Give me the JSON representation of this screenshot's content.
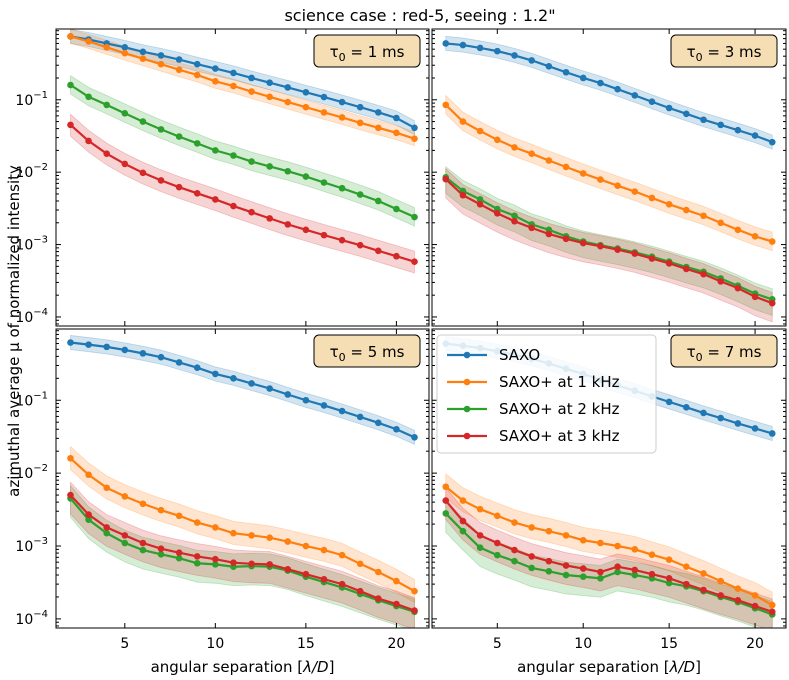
{
  "chart_data": {
    "type": "line",
    "title": "science case : red-5, seeing : 1.2\"",
    "xlabel_prefix": "angular separation [",
    "xlabel_math": "λ/D",
    "xlabel_suffix": "]",
    "ylabel": "azimuthal average μ of normalized intensity",
    "xlim": [
      1.2,
      21.8
    ],
    "ylim": [
      7.5e-05,
      0.95
    ],
    "yscale": "log",
    "xticks": [
      5,
      10,
      15,
      20
    ],
    "xtick_labels": [
      "5",
      "10",
      "15",
      "20"
    ],
    "yticks": [
      0.1,
      0.01,
      0.001,
      0.0001
    ],
    "ytick_labels": [
      {
        "base": "10",
        "exp": "−1"
      },
      {
        "base": "10",
        "exp": "−2"
      },
      {
        "base": "10",
        "exp": "−3"
      },
      {
        "base": "10",
        "exp": "−4"
      }
    ],
    "x": [
      2,
      3,
      4,
      5,
      6,
      7,
      8,
      9,
      10,
      11,
      12,
      13,
      14,
      15,
      16,
      17,
      18,
      19,
      20,
      21
    ],
    "colors": {
      "SAXO": "#1f77b4",
      "SAXO+ at 1 kHz": "#ff7f0e",
      "SAXO+ at 2 kHz": "#2ca02c",
      "SAXO+ at 3 kHz": "#d62728"
    },
    "legend": {
      "placement": "top-left of lower-right panel",
      "entries": [
        "SAXO",
        "SAXO+ at 1 kHz",
        "SAXO+ at 2 kHz",
        "SAXO+ at 3 kHz"
      ]
    },
    "panels": [
      {
        "tau_symbol": "τ",
        "tau_sub": "0",
        "tau_value": "= 1 ms",
        "series": [
          {
            "name": "SAXO",
            "values": [
              0.75,
              0.68,
              0.6,
              0.53,
              0.46,
              0.41,
              0.36,
              0.31,
              0.27,
              0.235,
              0.2,
              0.172,
              0.148,
              0.127,
              0.109,
              0.093,
              0.079,
              0.067,
              0.056,
              0.041
            ],
            "band_low": 0.8,
            "band_high": 1.25
          },
          {
            "name": "SAXO+ at 1 kHz",
            "values": [
              0.75,
              0.64,
              0.53,
              0.44,
              0.37,
              0.31,
              0.26,
              0.22,
              0.18,
              0.155,
              0.13,
              0.11,
              0.093,
              0.079,
              0.067,
              0.057,
              0.048,
              0.041,
              0.035,
              0.029
            ],
            "band_low": 0.8,
            "band_high": 1.25
          },
          {
            "name": "SAXO+ at 2 kHz",
            "values": [
              0.16,
              0.11,
              0.085,
              0.065,
              0.05,
              0.039,
              0.031,
              0.025,
              0.02,
              0.017,
              0.014,
              0.012,
              0.0103,
              0.0087,
              0.0072,
              0.006,
              0.0049,
              0.004,
              0.0031,
              0.0024
            ],
            "band_low": 0.75,
            "band_high": 1.35
          },
          {
            "name": "SAXO+ at 3 kHz",
            "values": [
              0.045,
              0.027,
              0.018,
              0.013,
              0.0098,
              0.0077,
              0.0062,
              0.0051,
              0.0042,
              0.0034,
              0.0028,
              0.0023,
              0.0019,
              0.0016,
              0.00135,
              0.00115,
              0.00098,
              0.00082,
              0.00069,
              0.00058
            ],
            "band_low": 0.7,
            "band_high": 1.4
          }
        ]
      },
      {
        "tau_symbol": "τ",
        "tau_sub": "0",
        "tau_value": "= 3 ms",
        "series": [
          {
            "name": "SAXO",
            "values": [
              0.6,
              0.57,
              0.52,
              0.47,
              0.41,
              0.35,
              0.29,
              0.24,
              0.2,
              0.17,
              0.14,
              0.115,
              0.094,
              0.077,
              0.064,
              0.053,
              0.045,
              0.038,
              0.032,
              0.026
            ],
            "band_low": 0.8,
            "band_high": 1.25
          },
          {
            "name": "SAXO+ at 1 kHz",
            "values": [
              0.085,
              0.05,
              0.037,
              0.028,
              0.022,
              0.018,
              0.0145,
              0.0118,
              0.0096,
              0.0079,
              0.0065,
              0.0054,
              0.0044,
              0.0036,
              0.003,
              0.0025,
              0.002,
              0.0016,
              0.0013,
              0.0011
            ],
            "band_low": 0.75,
            "band_high": 1.35
          },
          {
            "name": "SAXO+ at 2 kHz",
            "values": [
              0.0085,
              0.0055,
              0.0042,
              0.0031,
              0.0025,
              0.0019,
              0.0016,
              0.0013,
              0.0011,
              0.00098,
              0.00088,
              0.00078,
              0.00068,
              0.00058,
              0.00049,
              0.00042,
              0.00034,
              0.00027,
              0.00021,
              0.000175
            ],
            "band_low": 0.6,
            "band_high": 1.4
          },
          {
            "name": "SAXO+ at 3 kHz",
            "values": [
              0.008,
              0.0048,
              0.0036,
              0.0027,
              0.0021,
              0.0017,
              0.0014,
              0.0012,
              0.00105,
              0.00095,
              0.00085,
              0.00075,
              0.00064,
              0.00055,
              0.00046,
              0.00039,
              0.00031,
              0.00025,
              0.00019,
              0.000155
            ],
            "band_low": 0.55,
            "band_high": 1.4
          }
        ]
      },
      {
        "tau_symbol": "τ",
        "tau_sub": "0",
        "tau_value": "= 5 ms",
        "series": [
          {
            "name": "SAXO",
            "values": [
              0.62,
              0.58,
              0.54,
              0.49,
              0.44,
              0.39,
              0.33,
              0.28,
              0.23,
              0.2,
              0.17,
              0.145,
              0.12,
              0.1,
              0.085,
              0.071,
              0.059,
              0.049,
              0.04,
              0.031
            ],
            "band_low": 0.8,
            "band_high": 1.25
          },
          {
            "name": "SAXO+ at 1 kHz",
            "values": [
              0.016,
              0.0095,
              0.0063,
              0.0048,
              0.0038,
              0.0031,
              0.0026,
              0.0021,
              0.0018,
              0.0015,
              0.0014,
              0.0013,
              0.00115,
              0.001,
              0.00088,
              0.00075,
              0.00057,
              0.00044,
              0.00033,
              0.00024
            ],
            "band_low": 0.7,
            "band_high": 1.45
          },
          {
            "name": "SAXO+ at 2 kHz",
            "values": [
              0.0045,
              0.0023,
              0.0015,
              0.0011,
              0.00088,
              0.00077,
              0.00068,
              0.00058,
              0.00056,
              0.00052,
              0.00053,
              0.00052,
              0.00046,
              0.00038,
              0.00032,
              0.00027,
              0.00022,
              0.00018,
              0.00015,
              0.000125
            ],
            "band_low": 0.55,
            "band_high": 1.5
          },
          {
            "name": "SAXO+ at 3 kHz",
            "values": [
              0.005,
              0.0027,
              0.0018,
              0.0014,
              0.0011,
              0.00092,
              0.00081,
              0.00072,
              0.00066,
              0.00059,
              0.00057,
              0.00056,
              0.00048,
              0.00041,
              0.00035,
              0.0003,
              0.00024,
              0.00019,
              0.00016,
              0.00013
            ],
            "band_low": 0.55,
            "band_high": 1.5
          }
        ]
      },
      {
        "tau_symbol": "τ",
        "tau_sub": "0",
        "tau_value": "= 7 ms",
        "series": [
          {
            "name": "SAXO",
            "values": [
              0.6,
              0.56,
              0.52,
              0.47,
              0.42,
              0.37,
              0.32,
              0.27,
              0.23,
              0.19,
              0.16,
              0.135,
              0.113,
              0.095,
              0.08,
              0.067,
              0.057,
              0.048,
              0.041,
              0.035
            ],
            "band_low": 0.8,
            "band_high": 1.25
          },
          {
            "name": "SAXO+ at 1 kHz",
            "values": [
              0.0065,
              0.0042,
              0.0032,
              0.0026,
              0.0021,
              0.0018,
              0.0016,
              0.0014,
              0.0012,
              0.0011,
              0.001,
              0.0009,
              0.00076,
              0.00065,
              0.00052,
              0.00042,
              0.00033,
              0.00026,
              0.00021,
              0.000155
            ],
            "band_low": 0.7,
            "band_high": 1.5
          },
          {
            "name": "SAXO+ at 2 kHz",
            "values": [
              0.0028,
              0.0016,
              0.00095,
              0.00075,
              0.00062,
              0.0005,
              0.00045,
              0.0004,
              0.00038,
              0.00036,
              0.00044,
              0.0004,
              0.00036,
              0.00031,
              0.00028,
              0.00024,
              0.0002,
              0.00017,
              0.00014,
              0.000115
            ],
            "band_low": 0.55,
            "band_high": 1.5
          },
          {
            "name": "SAXO+ at 3 kHz",
            "values": [
              0.0042,
              0.0022,
              0.0014,
              0.0011,
              0.00088,
              0.00072,
              0.00062,
              0.00054,
              0.00049,
              0.00044,
              0.00052,
              0.00047,
              0.00041,
              0.00036,
              0.0003,
              0.00025,
              0.00021,
              0.00018,
              0.00015,
              0.000125
            ],
            "band_low": 0.55,
            "band_high": 1.5
          }
        ]
      }
    ]
  }
}
